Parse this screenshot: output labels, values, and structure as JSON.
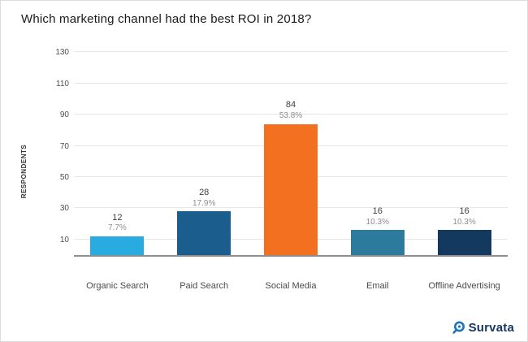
{
  "chart_data": {
    "type": "bar",
    "title": "Which marketing channel had the best ROI in 2018?",
    "categories": [
      "Organic Search",
      "Paid Search",
      "Social Media",
      "Email",
      "Offline Advertising"
    ],
    "values": [
      12,
      28,
      84,
      16,
      16
    ],
    "percent_labels": [
      "7.7%",
      "17.9%",
      "53.8%",
      "10.3%",
      "10.3%"
    ],
    "bar_colors": [
      "#29abe2",
      "#1b5e8e",
      "#f37021",
      "#2c7a9c",
      "#14395e"
    ],
    "xlabel": "",
    "ylabel": "RESPONDENTS",
    "yticks": [
      10,
      30,
      50,
      70,
      90,
      110,
      130
    ],
    "ylim": [
      0,
      140
    ],
    "grid": true,
    "legend": "none"
  },
  "branding": {
    "logo_text": "Survata",
    "logo_text_color": "#16355f",
    "logo_icon_color": "#1c75bc"
  }
}
